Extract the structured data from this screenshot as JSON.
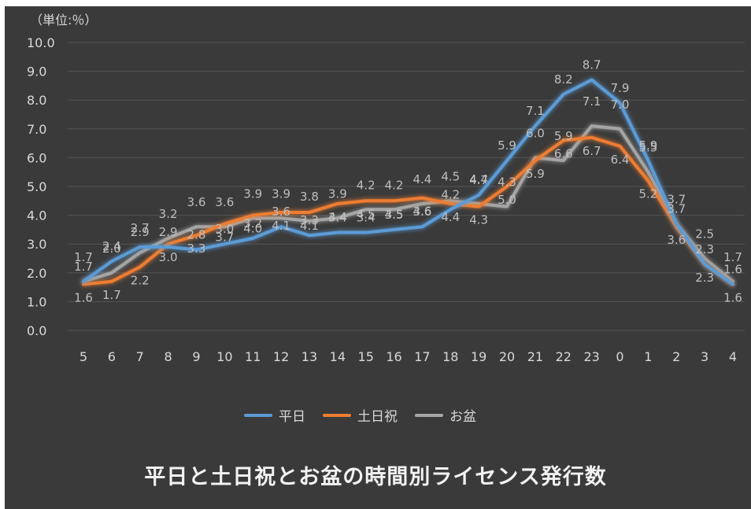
{
  "chart_data": {
    "type": "line",
    "title": "平日と土日祝とお盆の時間別ライセンス発行数",
    "unit_label": "（単位:％）",
    "categories": [
      "5",
      "6",
      "7",
      "8",
      "9",
      "10",
      "11",
      "12",
      "13",
      "14",
      "15",
      "16",
      "17",
      "18",
      "19",
      "20",
      "21",
      "22",
      "23",
      "0",
      "1",
      "2",
      "3",
      "4"
    ],
    "ylim": [
      0,
      10
    ],
    "yticks": [
      "0.0",
      "1.0",
      "2.0",
      "3.0",
      "4.0",
      "5.0",
      "6.0",
      "7.0",
      "8.0",
      "9.0",
      "10.0"
    ],
    "grid": true,
    "legend_position": "bottom",
    "series": [
      {
        "name": "平日",
        "color": "#5b9bd5",
        "values": [
          1.7,
          2.4,
          2.9,
          2.9,
          2.8,
          3.0,
          3.2,
          3.6,
          3.3,
          3.4,
          3.4,
          3.5,
          3.6,
          4.2,
          4.7,
          5.9,
          7.1,
          8.2,
          8.7,
          7.9,
          5.9,
          3.7,
          2.3,
          1.6
        ]
      },
      {
        "name": "土日祝",
        "color": "#ed7d31",
        "values": [
          1.6,
          1.7,
          2.2,
          3.0,
          3.3,
          3.7,
          4.0,
          4.1,
          4.1,
          4.4,
          4.5,
          4.5,
          4.6,
          4.4,
          4.3,
          5.0,
          5.9,
          6.6,
          6.7,
          6.4,
          5.2,
          3.6,
          2.3,
          1.6
        ]
      },
      {
        "name": "お盆",
        "color": "#a5a5a5",
        "values": [
          1.7,
          2.0,
          2.7,
          3.2,
          3.6,
          3.6,
          3.9,
          3.9,
          3.8,
          3.9,
          4.2,
          4.2,
          4.4,
          4.5,
          4.4,
          4.3,
          6.0,
          5.9,
          7.1,
          7.0,
          5.5,
          3.7,
          2.5,
          1.7
        ]
      }
    ]
  }
}
